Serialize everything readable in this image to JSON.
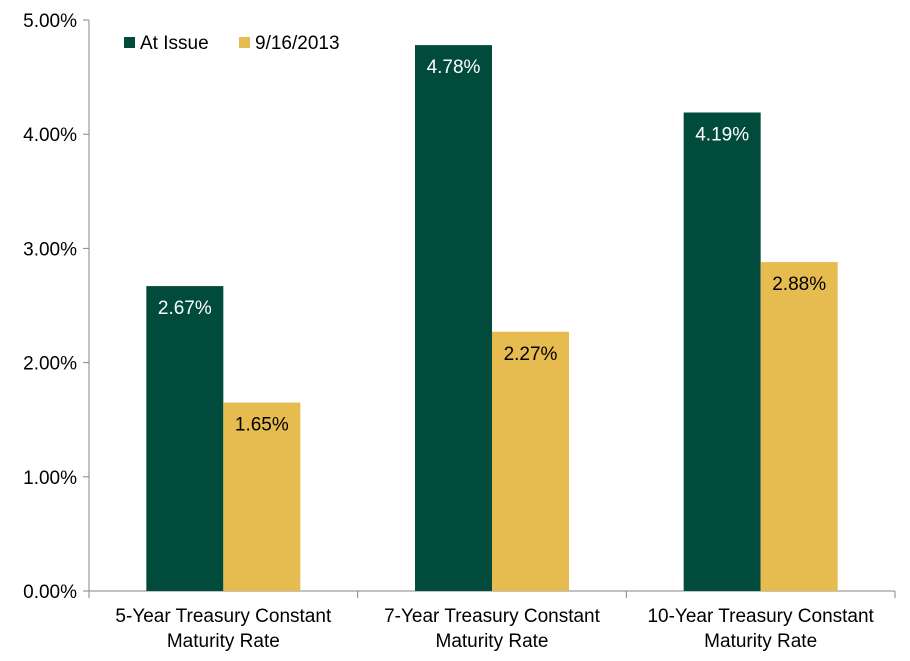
{
  "chart_data": {
    "type": "bar",
    "categories": [
      [
        "5-Year Treasury Constant",
        "Maturity Rate"
      ],
      [
        "7-Year Treasury Constant",
        "Maturity Rate"
      ],
      [
        "10-Year Treasury Constant",
        "Maturity Rate"
      ]
    ],
    "series": [
      {
        "name": "At Issue",
        "color": "#004B3C",
        "label_color": "#ffffff",
        "values": [
          2.67,
          4.78,
          4.19
        ],
        "labels": [
          "2.67%",
          "4.78%",
          "4.19%"
        ]
      },
      {
        "name": "9/16/2013",
        "color": "#E6BC50",
        "label_color": "#000000",
        "values": [
          1.65,
          2.27,
          2.88
        ],
        "labels": [
          "1.65%",
          "2.27%",
          "2.88%"
        ]
      }
    ],
    "ylim": [
      0,
      5
    ],
    "yticks": [
      0,
      1,
      2,
      3,
      4,
      5
    ],
    "ytick_labels": [
      "0.00%",
      "1.00%",
      "2.00%",
      "3.00%",
      "4.00%",
      "5.00%"
    ],
    "title": "",
    "xlabel": "",
    "ylabel": "",
    "grid": false,
    "legend_position": "top-left"
  }
}
